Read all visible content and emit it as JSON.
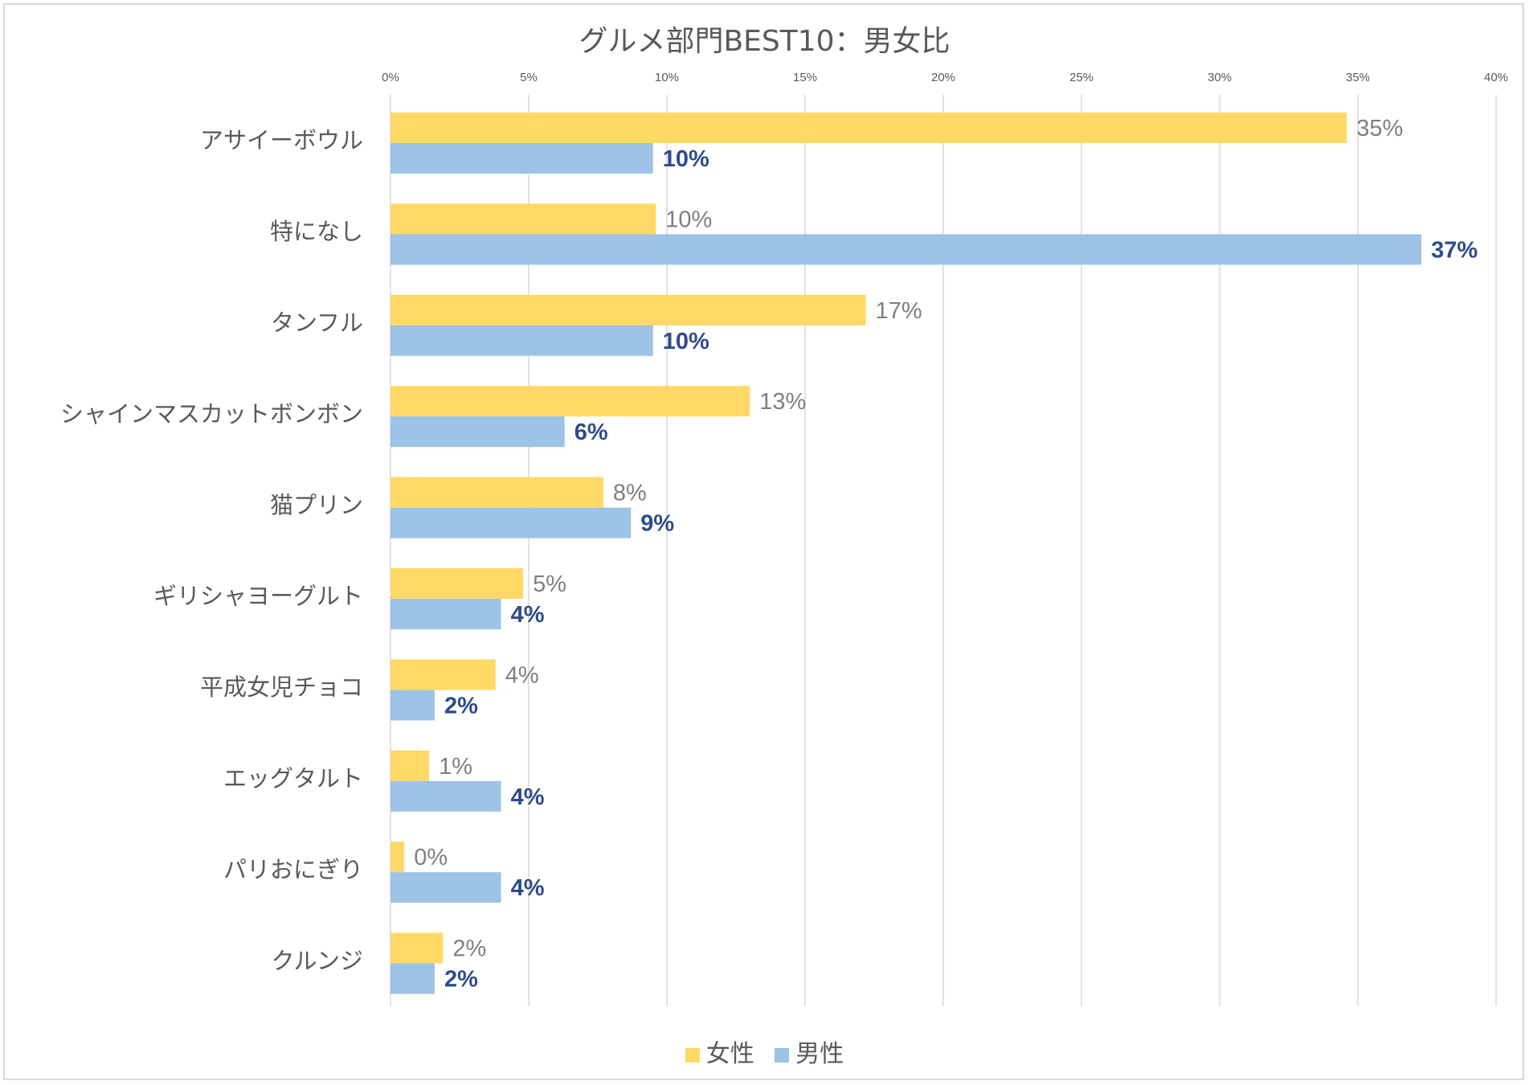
{
  "chart_data": {
    "type": "bar",
    "orientation": "horizontal",
    "title": "グルメ部門BEST10：男女比",
    "categories": [
      "アサイーボウル",
      "特になし",
      "タンフル",
      "シャインマスカットボンボン",
      "猫プリン",
      "ギリシャヨーグルト",
      "平成女児チョコ",
      "エッグタルト",
      "パリおにぎり",
      "クルンジ"
    ],
    "series": [
      {
        "name": "女性",
        "color": "#ffd966",
        "values": [
          34.6,
          9.6,
          17.2,
          13.0,
          7.7,
          4.8,
          3.8,
          1.4,
          0.5,
          1.9
        ],
        "labels": [
          "35%",
          "10%",
          "17%",
          "13%",
          "8%",
          "5%",
          "4%",
          "1%",
          "0%",
          "2%"
        ]
      },
      {
        "name": "男性",
        "color": "#9dc3e6",
        "values": [
          9.5,
          37.3,
          9.5,
          6.3,
          8.7,
          4.0,
          1.6,
          4.0,
          4.0,
          1.6
        ],
        "labels": [
          "10%",
          "37%",
          "10%",
          "6%",
          "9%",
          "4%",
          "2%",
          "4%",
          "4%",
          "2%"
        ]
      }
    ],
    "xlim": [
      0,
      40
    ],
    "xticks": [
      "0%",
      "5%",
      "10%",
      "15%",
      "20%",
      "25%",
      "30%",
      "35%",
      "40%"
    ],
    "xtick_values": [
      0,
      5,
      10,
      15,
      20,
      25,
      30,
      35,
      40
    ],
    "xaxis_position": "top",
    "grid": true,
    "legend_position": "bottom"
  }
}
